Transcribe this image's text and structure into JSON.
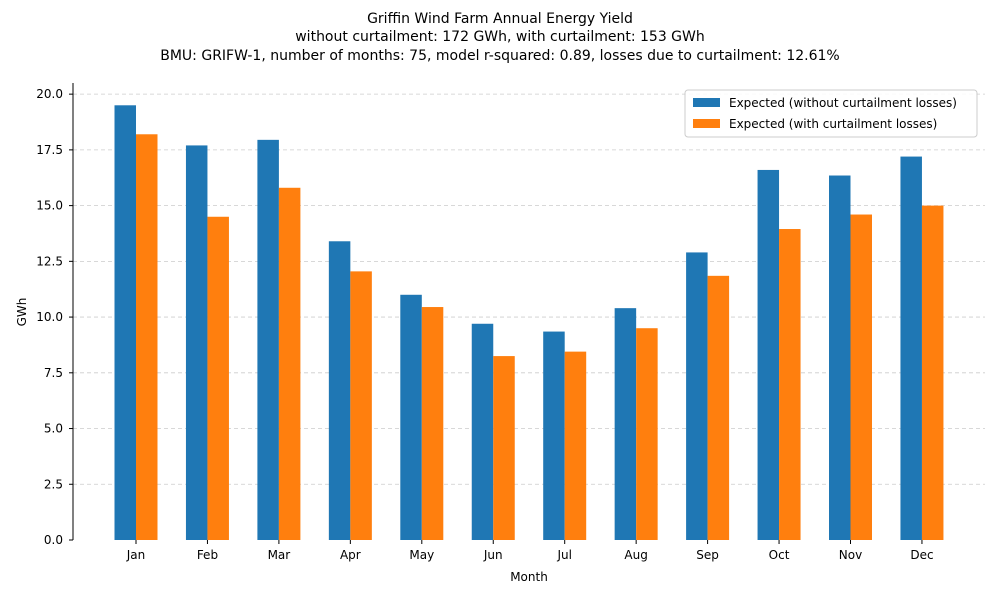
{
  "chart_data": {
    "type": "bar",
    "title": [
      "Griffin Wind Farm Annual Energy Yield",
      "without curtailment: 172 GWh, with curtailment: 153 GWh",
      "BMU: GRIFW-1, number of months: 75, model r-squared: 0.89, losses due to curtailment: 12.61%"
    ],
    "xlabel": "Month",
    "ylabel": "GWh",
    "ylim": [
      0,
      20.5
    ],
    "yticks": [
      "0.0",
      "2.5",
      "5.0",
      "7.5",
      "10.0",
      "12.5",
      "15.0",
      "17.5",
      "20.0"
    ],
    "grid": "horizontal dashed",
    "legend_position": "top-right",
    "categories": [
      "Jan",
      "Feb",
      "Mar",
      "Apr",
      "May",
      "Jun",
      "Jul",
      "Aug",
      "Sep",
      "Oct",
      "Nov",
      "Dec"
    ],
    "series": [
      {
        "name": "Expected (without curtailment losses)",
        "color": "#1f77b4",
        "values": [
          19.5,
          17.7,
          17.95,
          13.4,
          11.0,
          9.7,
          9.35,
          10.4,
          12.9,
          16.6,
          16.35,
          17.2
        ]
      },
      {
        "name": "Expected (with curtailment losses)",
        "color": "#ff7f0e",
        "values": [
          18.2,
          14.5,
          15.8,
          12.05,
          10.45,
          8.25,
          8.45,
          9.5,
          11.85,
          13.95,
          14.6,
          15.0
        ]
      }
    ]
  }
}
